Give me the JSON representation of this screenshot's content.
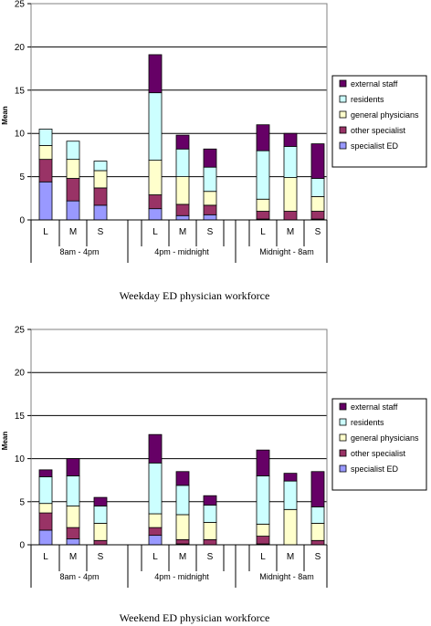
{
  "colors": {
    "specialist ED": "#9999ff",
    "other specialist": "#993366",
    "general physicians": "#ffffcc",
    "residents": "#ccffff",
    "external staff": "#660066"
  },
  "chart_data": [
    {
      "type": "bar",
      "stacked": true,
      "caption": "Weekday ED physician workforce",
      "ylabel": "Mean",
      "ylim": [
        0,
        25
      ],
      "yticks": [
        0,
        5,
        10,
        15,
        20,
        25
      ],
      "grid": true,
      "legend_position": "right",
      "legend_order": [
        "external staff",
        "residents",
        "general physicians",
        "other specialist",
        "specialist ED"
      ],
      "categories": [
        "L",
        "M",
        "S",
        "L",
        "M",
        "S",
        "L",
        "M",
        "S"
      ],
      "groups": [
        {
          "label": "8am - 4pm",
          "categories": [
            0,
            1,
            2
          ]
        },
        {
          "label": "4pm - midnight",
          "categories": [
            3,
            4,
            5
          ]
        },
        {
          "label": "Midnight - 8am",
          "categories": [
            6,
            7,
            8
          ]
        }
      ],
      "series": [
        {
          "name": "specialist ED",
          "values": [
            4.4,
            2.2,
            1.7,
            1.3,
            0.5,
            0.6,
            0.1,
            0.0,
            0.1
          ]
        },
        {
          "name": "other specialist",
          "values": [
            2.6,
            2.6,
            2.0,
            1.6,
            1.3,
            1.1,
            0.9,
            1.0,
            0.9
          ]
        },
        {
          "name": "general physicians",
          "values": [
            1.6,
            2.2,
            2.0,
            4.0,
            3.2,
            1.6,
            1.4,
            3.9,
            1.7
          ]
        },
        {
          "name": "residents",
          "values": [
            1.9,
            2.1,
            1.1,
            7.8,
            3.2,
            2.8,
            5.6,
            3.6,
            2.1
          ]
        },
        {
          "name": "external staff",
          "values": [
            0.0,
            0.0,
            0.0,
            4.4,
            1.6,
            2.1,
            3.0,
            1.5,
            4.0
          ]
        }
      ]
    },
    {
      "type": "bar",
      "stacked": true,
      "caption": "Weekend ED physician workforce",
      "ylabel": "Mean",
      "ylim": [
        0,
        25
      ],
      "yticks": [
        0,
        5,
        10,
        15,
        20,
        25
      ],
      "grid": true,
      "legend_position": "right",
      "legend_order": [
        "external staff",
        "residents",
        "general physicians",
        "other specialist",
        "specialist ED"
      ],
      "categories": [
        "L",
        "M",
        "S",
        "L",
        "M",
        "S",
        "L",
        "M",
        "S"
      ],
      "groups": [
        {
          "label": "8am - 4pm",
          "categories": [
            0,
            1,
            2
          ]
        },
        {
          "label": "4pm - midnight",
          "categories": [
            3,
            4,
            5
          ]
        },
        {
          "label": "Midnight - 8am",
          "categories": [
            6,
            7,
            8
          ]
        }
      ],
      "series": [
        {
          "name": "specialist ED",
          "values": [
            1.7,
            0.7,
            0.0,
            1.1,
            0.1,
            0.0,
            0.1,
            0.0,
            0.0
          ]
        },
        {
          "name": "other specialist",
          "values": [
            2.0,
            1.3,
            0.5,
            0.9,
            0.5,
            0.6,
            0.9,
            0.0,
            0.5
          ]
        },
        {
          "name": "general physicians",
          "values": [
            1.1,
            2.5,
            2.0,
            1.6,
            2.9,
            2.0,
            1.4,
            4.1,
            2.0
          ]
        },
        {
          "name": "residents",
          "values": [
            3.1,
            3.5,
            2.0,
            5.9,
            3.4,
            2.0,
            5.6,
            3.3,
            1.9
          ]
        },
        {
          "name": "external staff",
          "values": [
            0.8,
            2.0,
            1.0,
            3.3,
            1.6,
            1.1,
            3.0,
            0.9,
            4.1
          ]
        }
      ]
    }
  ]
}
